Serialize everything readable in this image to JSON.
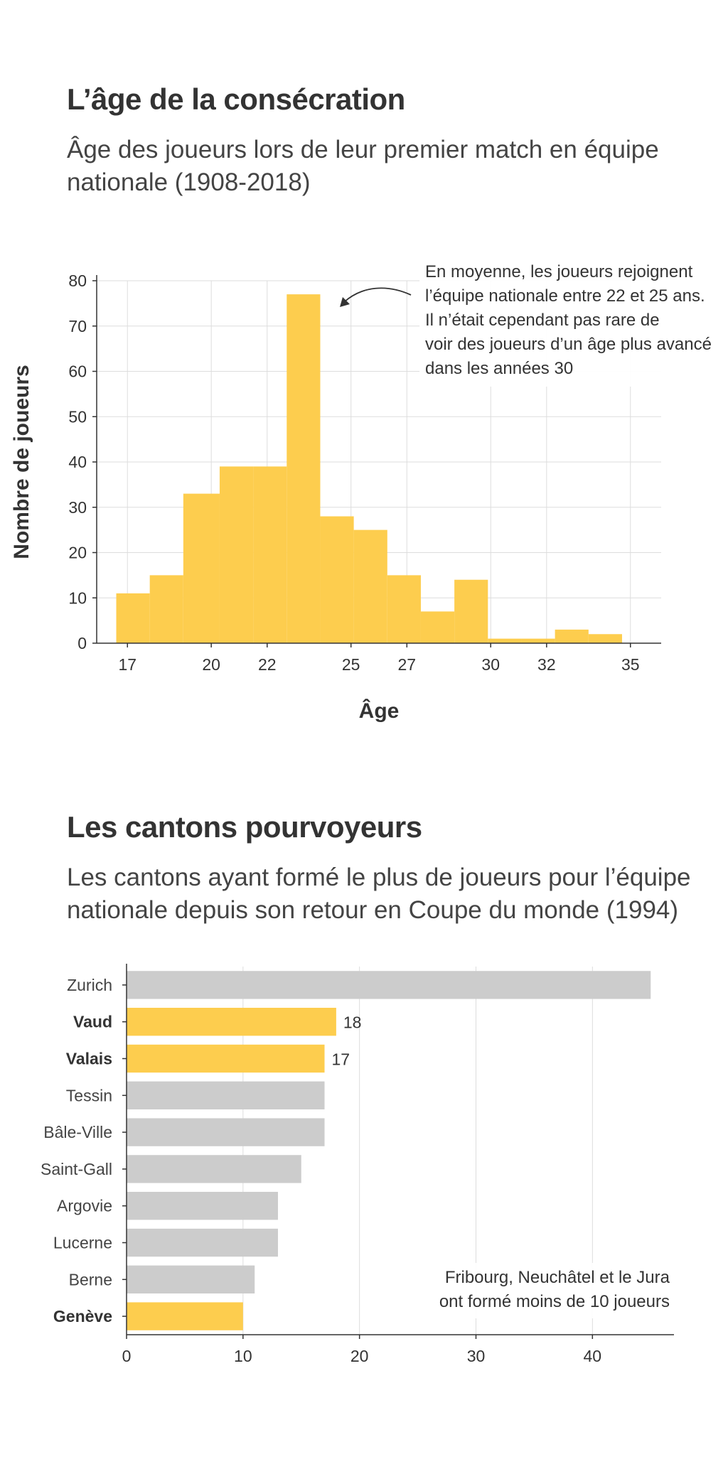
{
  "section1": {
    "title": "L’âge de la consécration",
    "subtitle": "Âge des joueurs lors de leur premier match en équipe nationale (1908-2018)",
    "annotation": [
      "En moyenne, les joueurs rejoignent",
      "l’équipe nationale entre 22 et 25 ans.",
      "Il n’était cependant pas rare de",
      "voir des joueurs d’un âge plus avancé",
      "dans les années 30"
    ]
  },
  "section2": {
    "title": "Les cantons pourvoyeurs",
    "subtitle": "Les cantons ayant formé le plus de joueurs pour l’équipe nationale depuis son retour en Coupe du monde (1994)",
    "annotation": [
      "Fribourg, Neuchâtel et le Jura",
      "ont formé moins de 10 joueurs"
    ]
  },
  "chart_data": [
    {
      "type": "bar",
      "subtype": "histogram",
      "xlabel": "Âge",
      "ylabel": "Nombre de joueurs",
      "xticks": [
        17,
        20,
        22,
        25,
        27,
        30,
        32,
        35
      ],
      "yticks": [
        0,
        10,
        20,
        30,
        40,
        50,
        60,
        70,
        80
      ],
      "xlim": [
        15.9,
        36.1
      ],
      "ylim": [
        0,
        80
      ],
      "bins": [
        {
          "start": 16.6,
          "end": 17.8,
          "value": 11
        },
        {
          "start": 17.8,
          "end": 19.0,
          "value": 15
        },
        {
          "start": 19.0,
          "end": 20.3,
          "value": 33
        },
        {
          "start": 20.3,
          "end": 21.5,
          "value": 39
        },
        {
          "start": 21.5,
          "end": 22.7,
          "value": 39
        },
        {
          "start": 22.7,
          "end": 23.9,
          "value": 77
        },
        {
          "start": 23.9,
          "end": 25.1,
          "value": 28
        },
        {
          "start": 25.1,
          "end": 26.3,
          "value": 25
        },
        {
          "start": 26.3,
          "end": 27.5,
          "value": 15
        },
        {
          "start": 27.5,
          "end": 28.7,
          "value": 7
        },
        {
          "start": 28.7,
          "end": 29.9,
          "value": 14
        },
        {
          "start": 29.9,
          "end": 31.1,
          "value": 1
        },
        {
          "start": 31.1,
          "end": 32.3,
          "value": 1
        },
        {
          "start": 32.3,
          "end": 33.5,
          "value": 3
        },
        {
          "start": 33.5,
          "end": 34.7,
          "value": 2
        }
      ],
      "color": "#fdcd4e",
      "grid": true
    },
    {
      "type": "bar",
      "orientation": "horizontal",
      "xlabel": "Nombre de joueurs",
      "xticks": [
        0,
        10,
        20,
        30,
        40
      ],
      "xlim": [
        0,
        47
      ],
      "categories": [
        "Zurich",
        "Vaud",
        "Valais",
        "Tessin",
        "Bâle-Ville",
        "Saint-Gall",
        "Argovie",
        "Lucerne",
        "Berne",
        "Genève"
      ],
      "values": [
        45,
        18,
        17,
        17,
        17,
        15,
        13,
        13,
        11,
        10
      ],
      "highlighted": [
        false,
        true,
        true,
        false,
        false,
        false,
        false,
        false,
        false,
        true
      ],
      "data_labels": [
        "",
        "18",
        "17",
        "",
        "",
        "",
        "",
        "",
        "",
        ""
      ],
      "highlight_color": "#fdcd4e",
      "base_color": "#cccccc",
      "grid": true
    }
  ]
}
